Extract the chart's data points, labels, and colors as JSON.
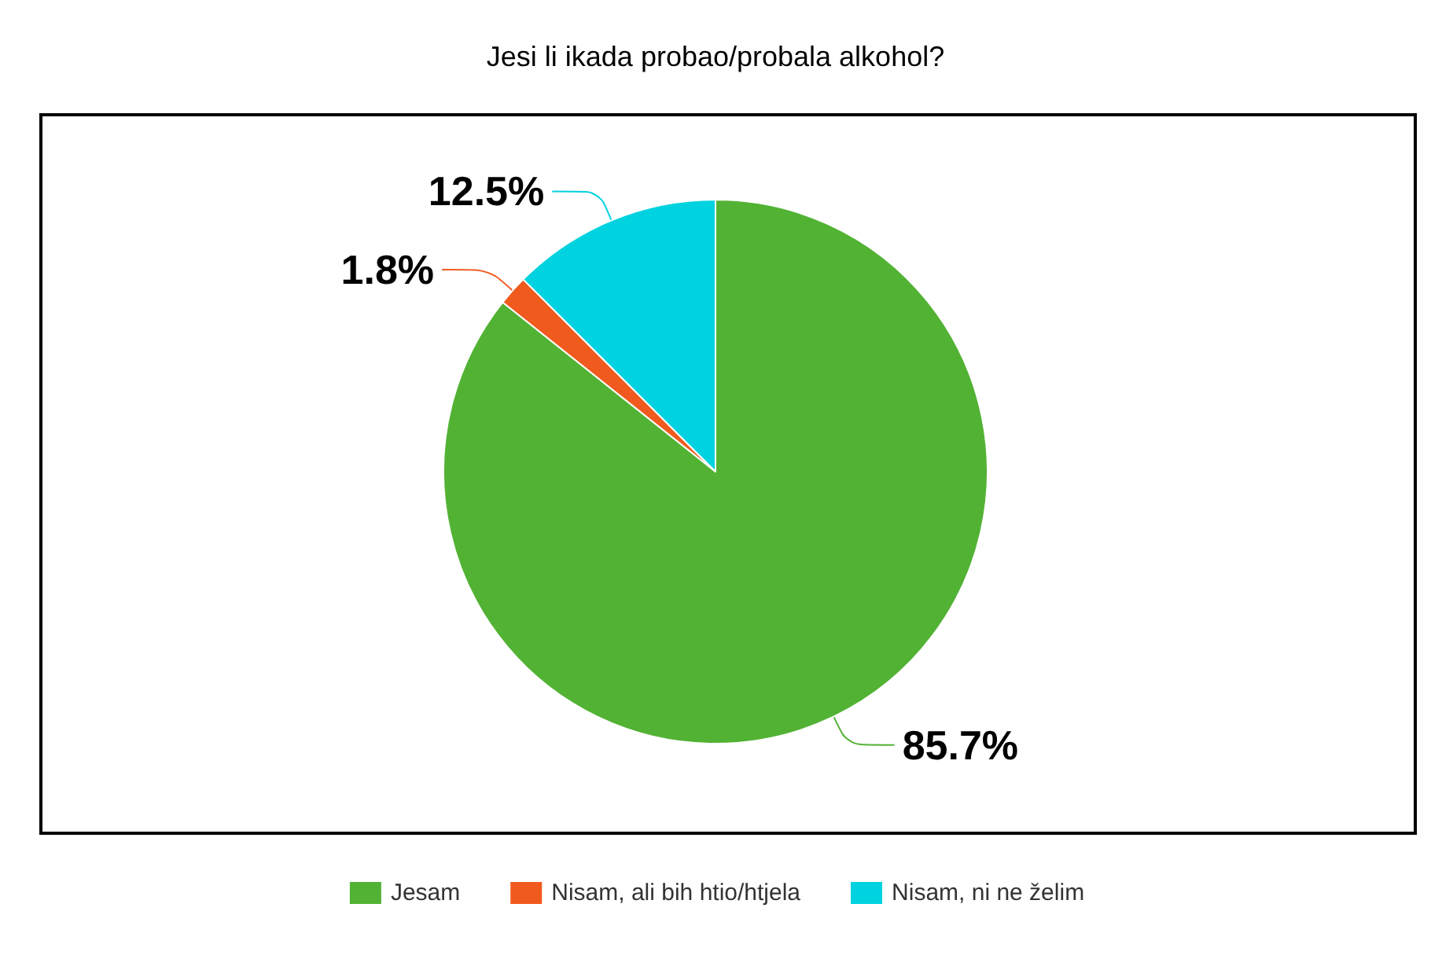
{
  "chart_data": {
    "type": "pie",
    "title": "Jesi li ikada probao/probala alkohol?",
    "categories": [
      "Jesam",
      "Nisam, ali bih htio/htjela",
      "Nisam, ni ne želim"
    ],
    "values": [
      85.7,
      1.8,
      12.5
    ],
    "colors": [
      "#52b234",
      "#f05a1e",
      "#00d2e0"
    ],
    "value_labels": [
      "85.7%",
      "1.8%",
      "12.5%"
    ],
    "legend": "bottom"
  }
}
